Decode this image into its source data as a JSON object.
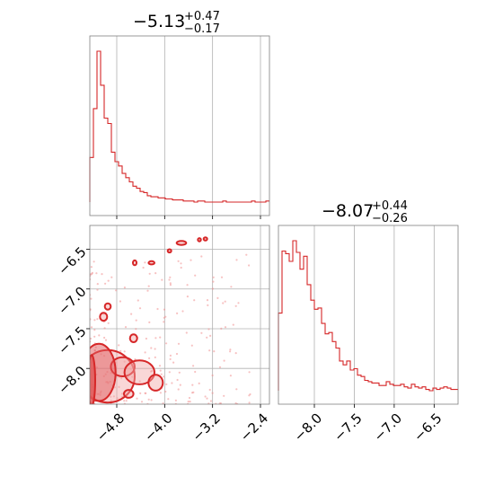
{
  "chart_data": {
    "type": "corner",
    "colors": {
      "series": "#d62728",
      "fill_dark": "#e05a5b",
      "fill_light": "#f2a6a6",
      "points": "#f08f90",
      "grid": "#b0b0b0"
    },
    "grid": true,
    "param1": {
      "title_value": "−5.13",
      "title_plus": "+0.47",
      "title_minus": "−0.17",
      "range": [
        -5.25,
        -2.25
      ],
      "ticks": [
        -4.8,
        -4.0,
        -3.2,
        -2.4
      ],
      "tick_labels": [
        "−4.8",
        "−4.0",
        "−3.2",
        "−2.4"
      ],
      "hist_counts": [
        42,
        88,
        142,
        110,
        79,
        74,
        47,
        38,
        34,
        27,
        23,
        19,
        15,
        13,
        10,
        9,
        6,
        5,
        5,
        4,
        4,
        3,
        3,
        2,
        2,
        2,
        1,
        1,
        1,
        0,
        1,
        1,
        0,
        0,
        0,
        0,
        0,
        1,
        0,
        0,
        0,
        0,
        0,
        0,
        0,
        1,
        0,
        0,
        0,
        1
      ]
    },
    "param2": {
      "title_value": "−8.07",
      "title_plus": "+0.44",
      "title_minus": "−0.26",
      "range": [
        -8.45,
        -6.2
      ],
      "ticks": [
        -8.0,
        -7.5,
        -7.0,
        -6.5
      ],
      "tick_labels": [
        "−8.0",
        "−7.5",
        "−7.0",
        "−6.5"
      ],
      "hist_counts": [
        60,
        108,
        106,
        100,
        116,
        107,
        94,
        104,
        82,
        70,
        63,
        64,
        52,
        44,
        45,
        38,
        33,
        23,
        20,
        23,
        16,
        17,
        12,
        11,
        8,
        7,
        6,
        6,
        4,
        4,
        7,
        5,
        4,
        4,
        5,
        3,
        2,
        5,
        3,
        2,
        3,
        1,
        0,
        2,
        1,
        2,
        3,
        2,
        1,
        1
      ]
    },
    "joint": {
      "x_ticks": [
        -4.8,
        -4.0,
        -3.2,
        -2.4
      ],
      "y_ticks": [
        -8.0,
        -7.5,
        -7.0,
        -6.5
      ],
      "y_tick_labels": [
        "−8.0",
        "−7.5",
        "−7.0",
        "−6.5"
      ],
      "contour_blobs": [
        {
          "x": -5.22,
          "y": -8.15,
          "rx": 0.06,
          "ry": 0.32,
          "level": 3
        },
        {
          "x": -5.1,
          "y": -8.05,
          "rx": 0.28,
          "ry": 0.36,
          "level": 2
        },
        {
          "x": -4.95,
          "y": -8.1,
          "rx": 0.45,
          "ry": 0.33,
          "level": 1
        },
        {
          "x": -4.7,
          "y": -7.98,
          "rx": 0.2,
          "ry": 0.12,
          "level": 1
        },
        {
          "x": -4.42,
          "y": -8.05,
          "rx": 0.25,
          "ry": 0.15,
          "level": 1
        },
        {
          "x": -4.15,
          "y": -8.18,
          "rx": 0.12,
          "ry": 0.1,
          "level": 1
        },
        {
          "x": -5.02,
          "y": -7.35,
          "rx": 0.06,
          "ry": 0.05,
          "level": 1
        },
        {
          "x": -4.95,
          "y": -7.22,
          "rx": 0.05,
          "ry": 0.04,
          "level": 1
        },
        {
          "x": -4.52,
          "y": -7.62,
          "rx": 0.06,
          "ry": 0.05,
          "level": 1
        },
        {
          "x": -4.6,
          "y": -8.32,
          "rx": 0.08,
          "ry": 0.05,
          "level": 1
        },
        {
          "x": -4.22,
          "y": -6.67,
          "rx": 0.05,
          "ry": 0.02,
          "level": 1
        },
        {
          "x": -4.5,
          "y": -6.67,
          "rx": 0.03,
          "ry": 0.03,
          "level": 1
        },
        {
          "x": -3.72,
          "y": -6.42,
          "rx": 0.08,
          "ry": 0.025,
          "level": 1
        },
        {
          "x": -3.32,
          "y": -6.37,
          "rx": 0.03,
          "ry": 0.02,
          "level": 1
        },
        {
          "x": -3.42,
          "y": -6.38,
          "rx": 0.025,
          "ry": 0.02,
          "level": 1
        },
        {
          "x": -3.92,
          "y": -6.52,
          "rx": 0.03,
          "ry": 0.02,
          "level": 1
        }
      ]
    }
  }
}
